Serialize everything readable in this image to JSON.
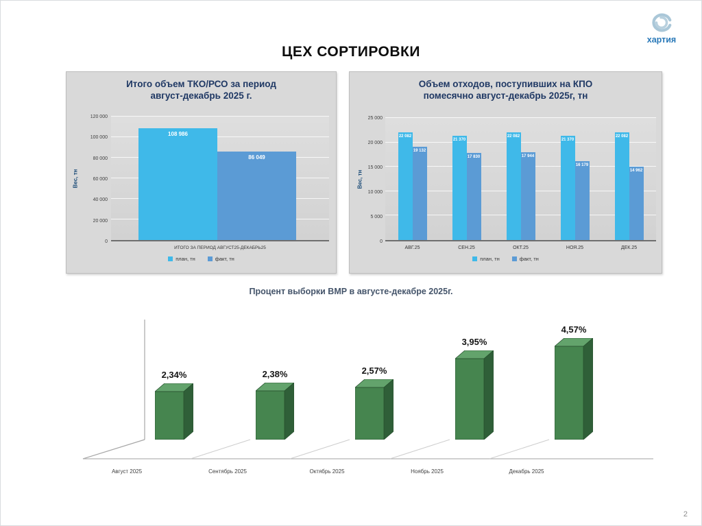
{
  "page": {
    "title": "ЦЕХ СОРТИРОВКИ",
    "page_number": "2"
  },
  "logo": {
    "text": "хартия"
  },
  "colors": {
    "plan": "#3fb9e9",
    "fact": "#5b9bd5",
    "green_front": "#46854f",
    "green_side": "#2f5f38",
    "green_top": "#63a36c",
    "panel_bg": "#d9d9d9"
  },
  "chart_data": [
    {
      "id": "tko_total",
      "type": "bar",
      "title": "Итого объем ТКО/РСО за период август-декабрь 2025 г.",
      "ylabel": "Вес, тн",
      "ylim": [
        0,
        120000
      ],
      "yticks": [
        0,
        20000,
        40000,
        60000,
        80000,
        100000,
        120000
      ],
      "ytick_labels": [
        "0",
        "20 000",
        "40 000",
        "60 000",
        "80 000",
        "100 000",
        "120 000"
      ],
      "grid": true,
      "legend_position": "bottom",
      "categories": [
        "ИТОГО ЗА ПЕРИОД АВГУСТ25-ДЕКАБРЬ25"
      ],
      "series": [
        {
          "name": "план, тн",
          "values": [
            108986
          ],
          "labels": [
            "108 986"
          ]
        },
        {
          "name": "факт, тн",
          "values": [
            86049
          ],
          "labels": [
            "86 049"
          ]
        }
      ]
    },
    {
      "id": "kpo_monthly",
      "type": "bar",
      "title": "Объем отходов, поступивших на КПО помесячно август-декабрь 2025г, тн",
      "ylabel": "Вес, тн",
      "ylim": [
        0,
        25000
      ],
      "yticks": [
        0,
        5000,
        10000,
        15000,
        20000,
        25000
      ],
      "ytick_labels": [
        "0",
        "5 000",
        "10 000",
        "15 000",
        "20 000",
        "25 000"
      ],
      "grid": true,
      "legend_position": "bottom",
      "categories": [
        "АВГ.25",
        "СЕН.25",
        "ОКТ.25",
        "НОЯ.25",
        "ДЕК.25"
      ],
      "series": [
        {
          "name": "план, тн",
          "values": [
            22082,
            21370,
            22082,
            21370,
            22082
          ],
          "labels": [
            "22 082",
            "21 370",
            "22 082",
            "21 370",
            "22 082"
          ]
        },
        {
          "name": "факт, тн",
          "values": [
            19132,
            17830,
            17944,
            16179,
            14962
          ],
          "labels": [
            "19 132",
            "17 830",
            "17 944",
            "16 179",
            "14 962"
          ]
        }
      ]
    },
    {
      "id": "vmr_percent",
      "type": "bar",
      "style": "3d",
      "title": "Процент выборки ВМР в августе-декабре 2025г.",
      "ylim": [
        0,
        4.57
      ],
      "grid": false,
      "categories": [
        "Август 2025",
        "Сентябрь 2025",
        "Октябрь 2025",
        "Ноябрь 2025",
        "Декабрь 2025"
      ],
      "values": [
        2.34,
        2.38,
        2.57,
        3.95,
        4.57
      ],
      "labels": [
        "2,34%",
        "2,38%",
        "2,57%",
        "3,95%",
        "4,57%"
      ]
    }
  ]
}
